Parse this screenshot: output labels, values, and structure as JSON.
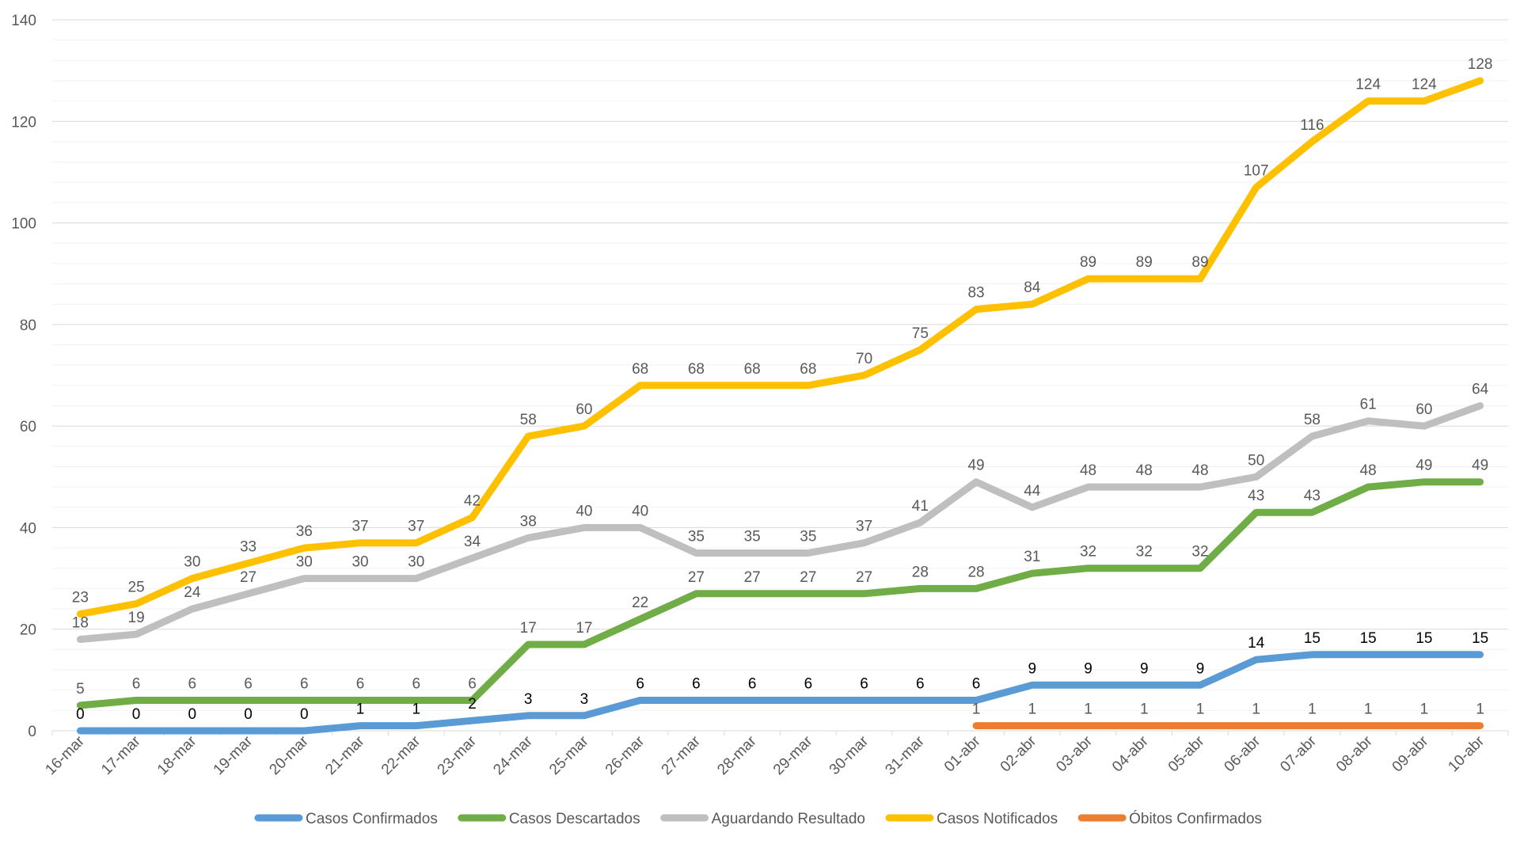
{
  "chart_data": {
    "type": "line",
    "title": "",
    "xlabel": "",
    "ylabel": "",
    "ylim": [
      0,
      140
    ],
    "yticks": [
      0,
      20,
      40,
      60,
      80,
      100,
      120,
      140
    ],
    "grid": true,
    "legend_position": "bottom",
    "categories": [
      "16-mar",
      "17-mar",
      "18-mar",
      "19-mar",
      "20-mar",
      "21-mar",
      "22-mar",
      "23-mar",
      "24-mar",
      "25-mar",
      "26-mar",
      "27-mar",
      "28-mar",
      "29-mar",
      "30-mar",
      "31-mar",
      "01-abr",
      "02-abr",
      "03-abr",
      "04-abr",
      "05-abr",
      "06-abr",
      "07-abr",
      "08-abr",
      "09-abr",
      "10-abr"
    ],
    "series": [
      {
        "name": "Casos Confirmados",
        "color": "#5B9BD5",
        "label_color": "#000000",
        "values": [
          0,
          0,
          0,
          0,
          0,
          1,
          1,
          2,
          3,
          3,
          6,
          6,
          6,
          6,
          6,
          6,
          6,
          9,
          9,
          9,
          9,
          14,
          15,
          15,
          15,
          15
        ]
      },
      {
        "name": "Casos Descartados",
        "color": "#70AD47",
        "label_color": "#595959",
        "values": [
          5,
          6,
          6,
          6,
          6,
          6,
          6,
          6,
          17,
          17,
          22,
          27,
          27,
          27,
          27,
          28,
          28,
          31,
          32,
          32,
          32,
          43,
          43,
          48,
          49,
          49
        ]
      },
      {
        "name": "Aguardando Resultado",
        "color": "#BFBFBF",
        "label_color": "#595959",
        "values": [
          18,
          19,
          24,
          27,
          30,
          30,
          30,
          34,
          38,
          40,
          40,
          35,
          35,
          35,
          37,
          41,
          49,
          44,
          48,
          48,
          48,
          50,
          58,
          61,
          60,
          64
        ]
      },
      {
        "name": "Casos Notificados",
        "color": "#FFC000",
        "label_color": "#595959",
        "values": [
          23,
          25,
          30,
          33,
          36,
          37,
          37,
          42,
          58,
          60,
          68,
          68,
          68,
          68,
          70,
          75,
          83,
          84,
          89,
          89,
          89,
          107,
          116,
          124,
          124,
          128
        ]
      },
      {
        "name": "Óbitos Confirmados",
        "color": "#ED7D31",
        "label_color": "#595959",
        "values": [
          null,
          null,
          null,
          null,
          null,
          null,
          null,
          null,
          null,
          null,
          null,
          null,
          null,
          null,
          null,
          null,
          1,
          1,
          1,
          1,
          1,
          1,
          1,
          1,
          1,
          1
        ]
      }
    ]
  }
}
